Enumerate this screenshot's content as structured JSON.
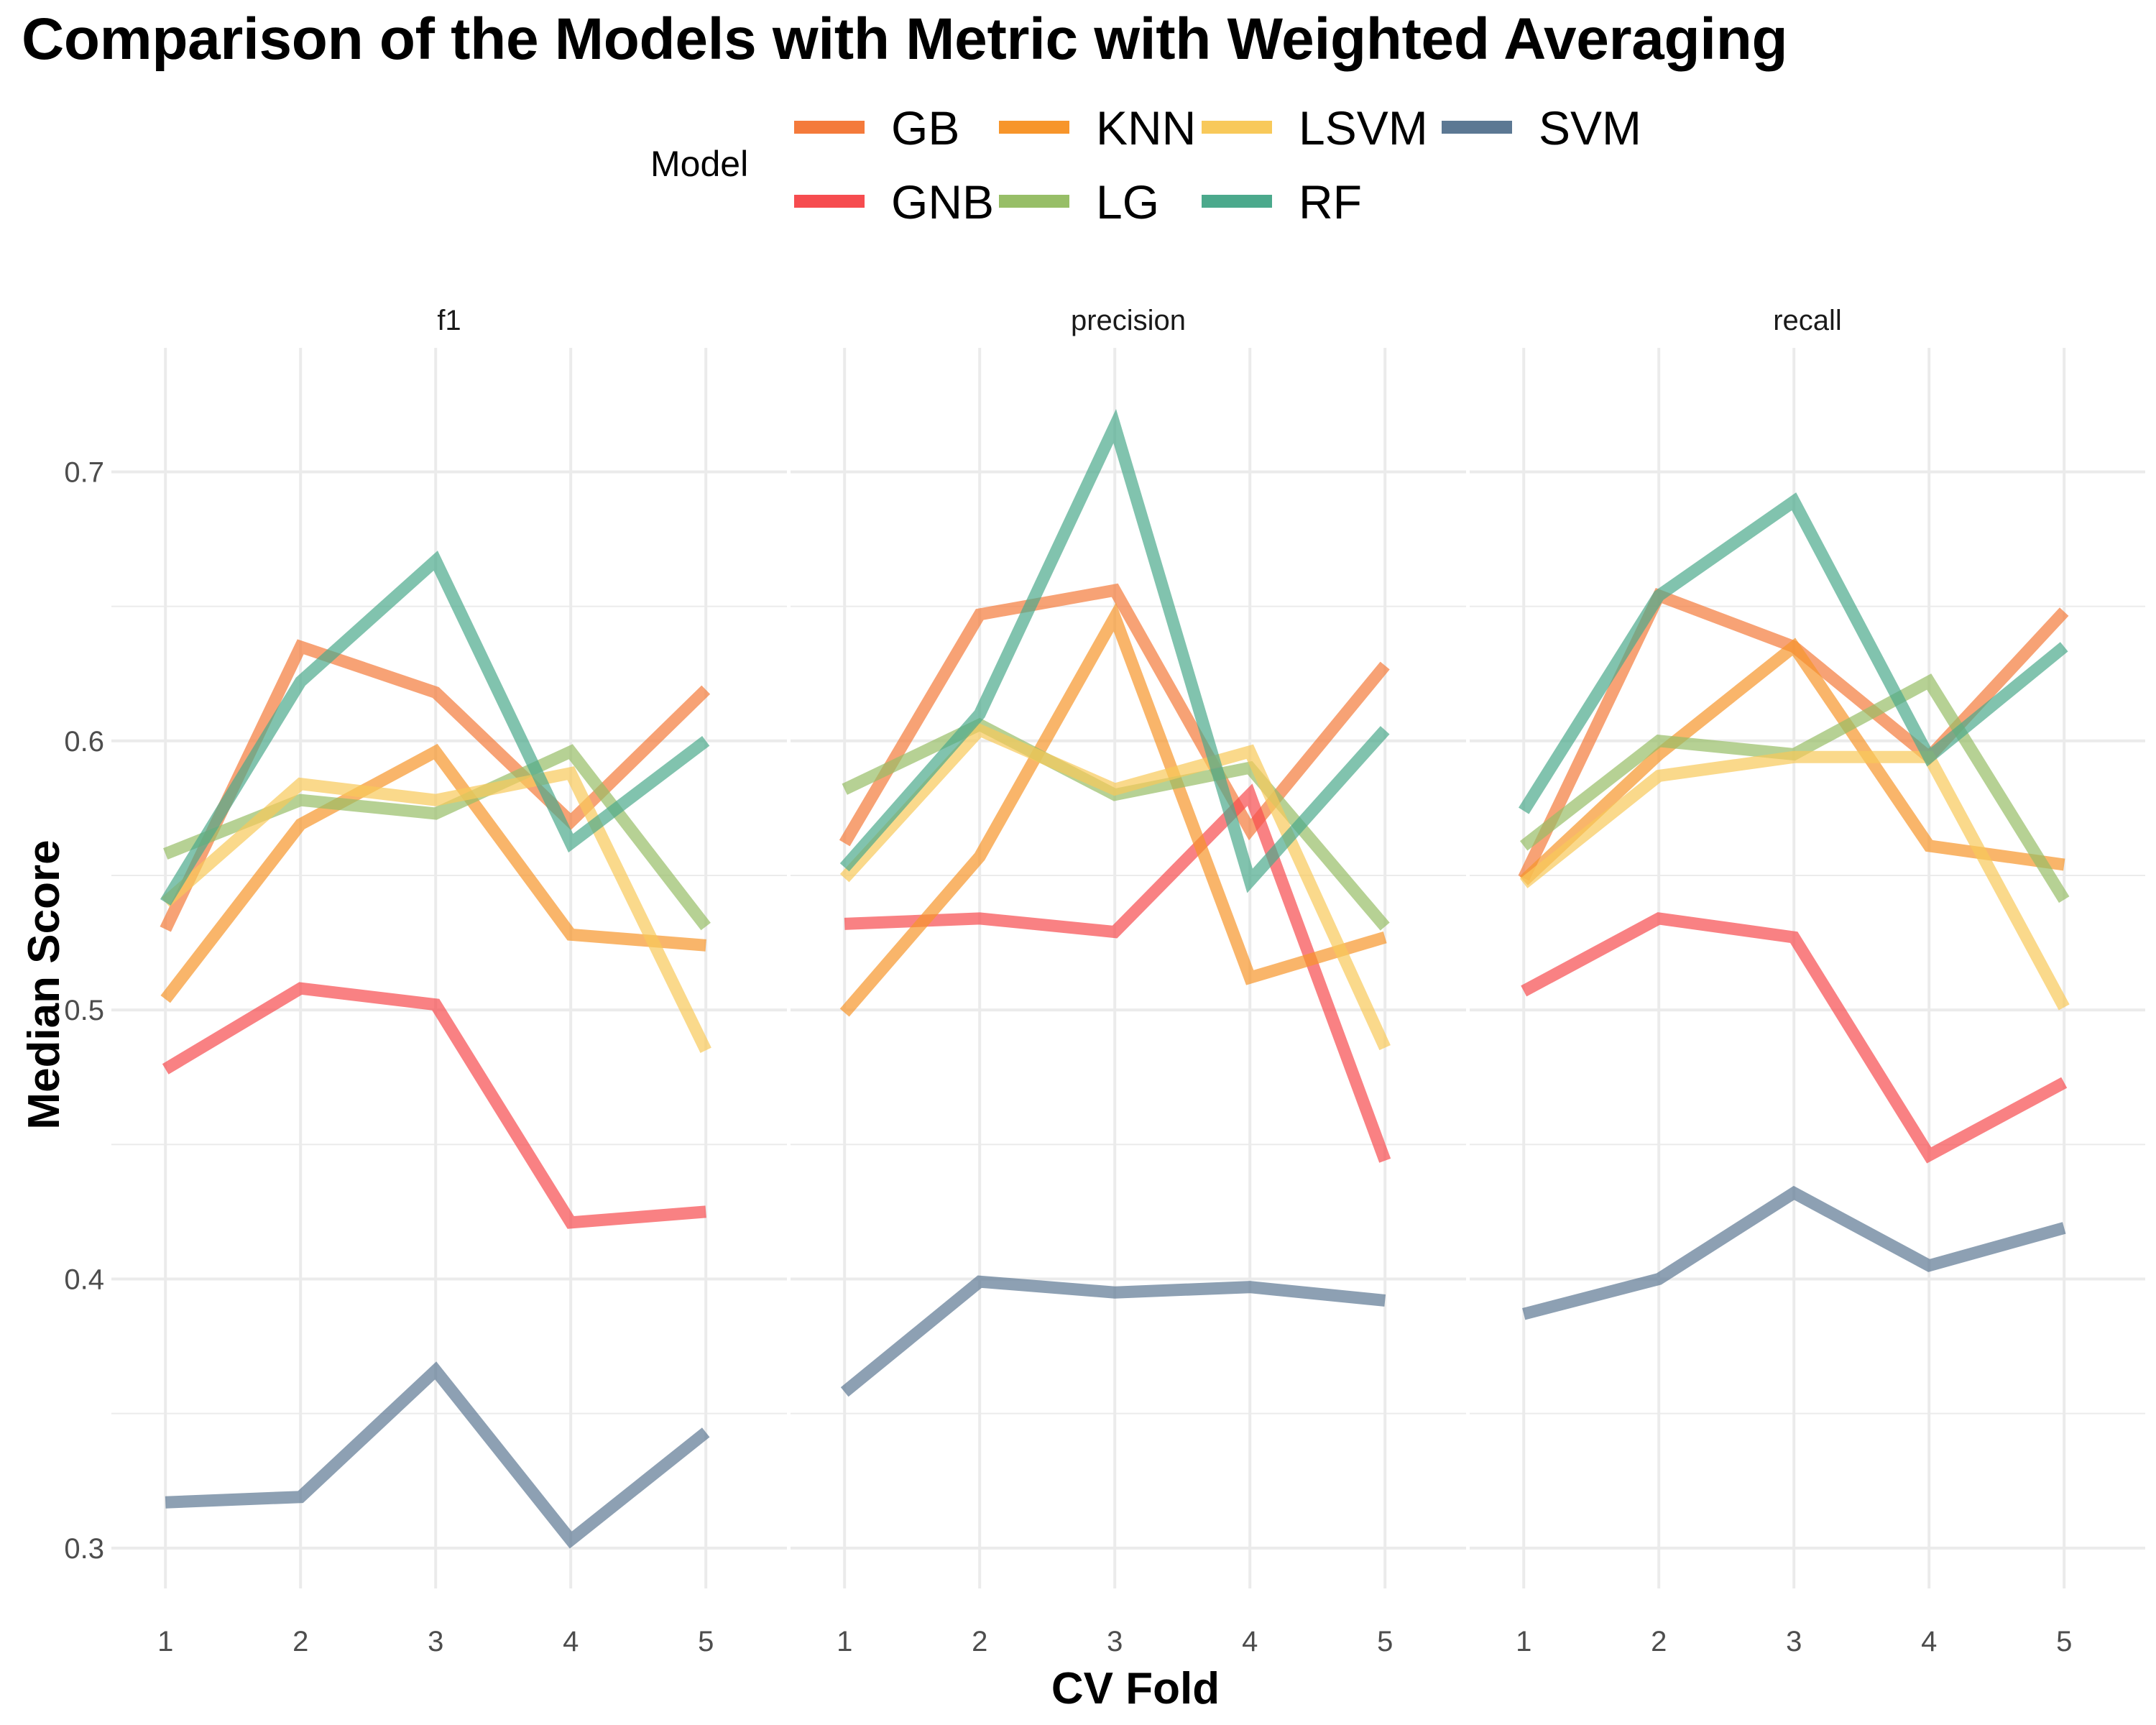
{
  "chart_data": {
    "type": "line",
    "title": "Comparison of the Models with Metric with Weighted Averaging",
    "xlabel": "CV Fold",
    "ylabel": "Median Score",
    "x": [
      1,
      2,
      3,
      4,
      5
    ],
    "x_ticks": [
      "1",
      "2",
      "3",
      "4",
      "5"
    ],
    "y_ticks": [
      "0.3",
      "0.4",
      "0.5",
      "0.6",
      "0.7"
    ],
    "ylim": [
      0.285,
      0.745
    ],
    "grid": true,
    "legend": {
      "title": "Model",
      "position": "top",
      "entries": [
        "GB",
        "GNB",
        "KNN",
        "LG",
        "LSVM",
        "RF",
        "SVM"
      ]
    },
    "colors": {
      "GB": "#F47A3B",
      "GNB": "#F64C4F",
      "KNN": "#F7952B",
      "LG": "#97BE67",
      "LSVM": "#F8C95A",
      "RF": "#4BA98C",
      "SVM": "#5C7893"
    },
    "facets": [
      {
        "label": "f1",
        "series": [
          {
            "name": "GB",
            "values": [
              0.53,
              0.635,
              0.618,
              0.57,
              0.619
            ]
          },
          {
            "name": "GNB",
            "values": [
              0.478,
              0.508,
              0.502,
              0.421,
              0.425
            ]
          },
          {
            "name": "KNN",
            "values": [
              0.504,
              0.569,
              0.596,
              0.528,
              0.524
            ]
          },
          {
            "name": "LG",
            "values": [
              0.558,
              0.578,
              0.573,
              0.596,
              0.531
            ]
          },
          {
            "name": "LSVM",
            "values": [
              0.54,
              0.584,
              0.578,
              0.588,
              0.485
            ]
          },
          {
            "name": "RF",
            "values": [
              0.54,
              0.622,
              0.667,
              0.562,
              0.6
            ]
          },
          {
            "name": "SVM",
            "values": [
              0.317,
              0.319,
              0.366,
              0.303,
              0.343
            ]
          }
        ]
      },
      {
        "label": "precision",
        "series": [
          {
            "name": "GB",
            "values": [
              0.562,
              0.647,
              0.656,
              0.567,
              0.628
            ]
          },
          {
            "name": "GNB",
            "values": [
              0.532,
              0.534,
              0.529,
              0.58,
              0.444
            ]
          },
          {
            "name": "KNN",
            "values": [
              0.499,
              0.557,
              0.646,
              0.512,
              0.527
            ]
          },
          {
            "name": "LG",
            "values": [
              0.582,
              0.606,
              0.58,
              0.59,
              0.531
            ]
          },
          {
            "name": "LSVM",
            "values": [
              0.549,
              0.604,
              0.582,
              0.596,
              0.486
            ]
          },
          {
            "name": "RF",
            "values": [
              0.553,
              0.61,
              0.717,
              0.548,
              0.604
            ]
          },
          {
            "name": "SVM",
            "values": [
              0.358,
              0.399,
              0.395,
              0.397,
              0.392
            ]
          }
        ]
      },
      {
        "label": "recall",
        "series": [
          {
            "name": "GB",
            "values": [
              0.549,
              0.654,
              0.635,
              0.594,
              0.648
            ]
          },
          {
            "name": "GNB",
            "values": [
              0.507,
              0.534,
              0.527,
              0.446,
              0.473
            ]
          },
          {
            "name": "KNN",
            "values": [
              0.548,
              0.595,
              0.635,
              0.561,
              0.554
            ]
          },
          {
            "name": "LG",
            "values": [
              0.561,
              0.6,
              0.595,
              0.622,
              0.541
            ]
          },
          {
            "name": "LSVM",
            "values": [
              0.547,
              0.587,
              0.594,
              0.594,
              0.501
            ]
          },
          {
            "name": "RF",
            "values": [
              0.574,
              0.654,
              0.689,
              0.594,
              0.635
            ]
          },
          {
            "name": "SVM",
            "values": [
              0.387,
              0.4,
              0.432,
              0.405,
              0.419
            ]
          }
        ]
      }
    ]
  }
}
